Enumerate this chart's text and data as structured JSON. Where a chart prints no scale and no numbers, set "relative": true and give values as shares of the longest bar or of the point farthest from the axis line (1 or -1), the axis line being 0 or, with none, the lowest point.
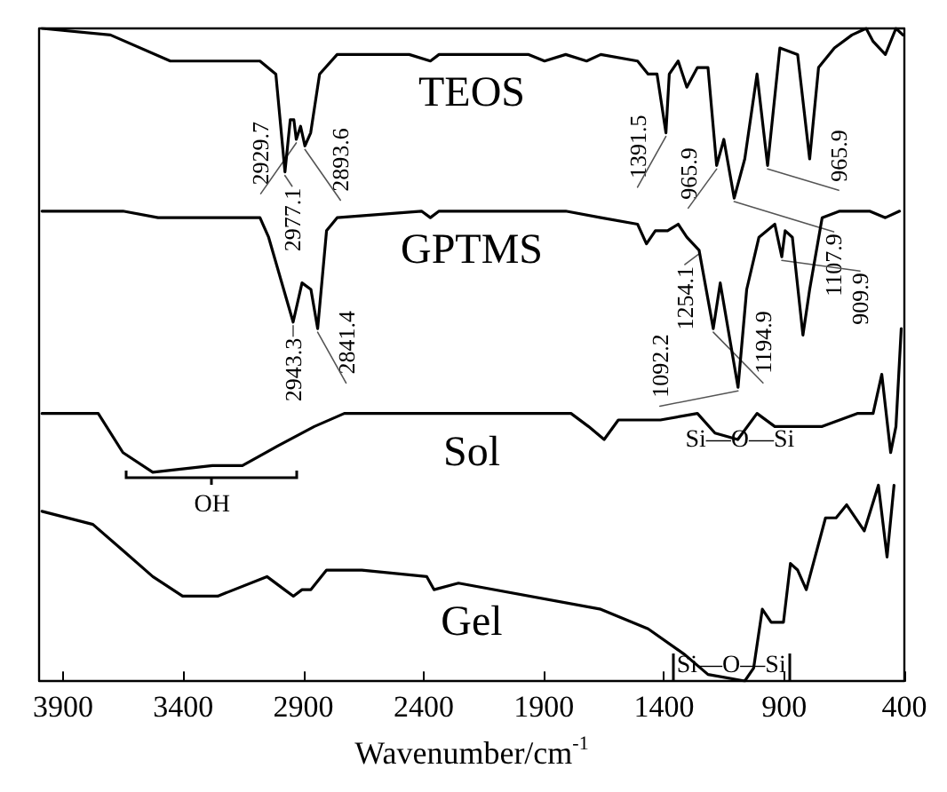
{
  "chart_data": {
    "type": "line",
    "xlabel": "Wavenumber/cm$^{-1}$",
    "relative": true,
    "xlim": [
      4000,
      400
    ],
    "xticks": [
      3900,
      3400,
      2900,
      2400,
      1900,
      1400,
      900,
      400
    ],
    "grid": false,
    "legend": false,
    "marker": "none",
    "line_style": "solid",
    "series": [
      {
        "name": "TEOS",
        "color": "#000000",
        "x": [
          3988,
          3703,
          3454,
          3081,
          3015,
          2977,
          2955,
          2940,
          2930,
          2912,
          2894,
          2870,
          2833,
          2760,
          2460,
          2372,
          2336,
          1963,
          1897,
          1809,
          1722,
          1663,
          1510,
          1466,
          1429,
          1392,
          1378,
          1341,
          1305,
          1261,
          1217,
          1181,
          1151,
          1108,
          1064,
          1013,
          969,
          918,
          844,
          794,
          757,
          691,
          618,
          559,
          530,
          479,
          435,
          406
        ],
        "values": [
          1.0,
          0.99,
          0.95,
          0.95,
          0.93,
          0.78,
          0.86,
          0.86,
          0.83,
          0.85,
          0.82,
          0.84,
          0.93,
          0.96,
          0.96,
          0.95,
          0.96,
          0.96,
          0.95,
          0.96,
          0.95,
          0.96,
          0.95,
          0.93,
          0.93,
          0.84,
          0.93,
          0.95,
          0.91,
          0.94,
          0.94,
          0.79,
          0.83,
          0.74,
          0.8,
          0.93,
          0.79,
          0.97,
          0.96,
          0.8,
          0.94,
          0.97,
          0.99,
          1.0,
          0.98,
          0.96,
          1.0,
          0.99
        ]
      },
      {
        "name": "GPTMS",
        "color": "#000000",
        "x": [
          3988,
          3651,
          3505,
          3081,
          3045,
          2943,
          2906,
          2869,
          2841,
          2804,
          2760,
          2409,
          2372,
          2336,
          1809,
          1663,
          1510,
          1473,
          1436,
          1385,
          1341,
          1305,
          1254,
          1195,
          1166,
          1092,
          1056,
          1005,
          939,
          910,
          896,
          866,
          822,
          794,
          742,
          669,
          545,
          479,
          420
        ],
        "values": [
          0.72,
          0.72,
          0.71,
          0.71,
          0.68,
          0.55,
          0.61,
          0.6,
          0.54,
          0.69,
          0.71,
          0.72,
          0.71,
          0.72,
          0.72,
          0.71,
          0.7,
          0.67,
          0.69,
          0.69,
          0.7,
          0.68,
          0.66,
          0.54,
          0.61,
          0.45,
          0.6,
          0.68,
          0.7,
          0.65,
          0.69,
          0.68,
          0.53,
          0.6,
          0.71,
          0.72,
          0.72,
          0.71,
          0.72
        ]
      },
      {
        "name": "Sol",
        "color": "#000000",
        "x": [
          3988,
          3754,
          3651,
          3527,
          3279,
          3154,
          3008,
          2855,
          2730,
          1787,
          1714,
          1649,
          1590,
          1415,
          1261,
          1188,
          1093,
          1013,
          939,
          844,
          742,
          596,
          530,
          494,
          457,
          435,
          413
        ],
        "values": [
          0.41,
          0.41,
          0.35,
          0.32,
          0.33,
          0.33,
          0.36,
          0.39,
          0.41,
          0.41,
          0.39,
          0.37,
          0.4,
          0.4,
          0.41,
          0.38,
          0.37,
          0.41,
          0.39,
          0.39,
          0.39,
          0.41,
          0.41,
          0.47,
          0.35,
          0.39,
          0.54
        ]
      },
      {
        "name": "Gel",
        "color": "#000000",
        "x": [
          3988,
          3776,
          3651,
          3527,
          3403,
          3257,
          3052,
          2979,
          2942,
          2906,
          2869,
          2804,
          2657,
          2387,
          2357,
          2255,
          1663,
          1466,
          1312,
          1217,
          1064,
          1027,
          991,
          954,
          903,
          874,
          844,
          808,
          728,
          684,
          640,
          567,
          508,
          472,
          443
        ],
        "values": [
          0.26,
          0.24,
          0.2,
          0.16,
          0.13,
          0.13,
          0.16,
          0.14,
          0.13,
          0.14,
          0.14,
          0.17,
          0.17,
          0.16,
          0.14,
          0.15,
          0.11,
          0.08,
          0.04,
          0.01,
          0.0,
          0.02,
          0.11,
          0.09,
          0.09,
          0.18,
          0.17,
          0.14,
          0.25,
          0.25,
          0.27,
          0.23,
          0.3,
          0.19,
          0.3
        ]
      }
    ],
    "annotations": [
      {
        "text": "2977.1",
        "x": 2977,
        "y": 0.78
      },
      {
        "text": "2929.7",
        "x": 2930,
        "y": 0.83
      },
      {
        "text": "2893.6",
        "x": 2894,
        "y": 0.82
      },
      {
        "text": "1391.5",
        "x": 1392,
        "y": 0.84
      },
      {
        "text": "965.9",
        "x": 1181,
        "y": 0.79
      },
      {
        "text": "1107.9",
        "x": 1108,
        "y": 0.74
      },
      {
        "text": "965.9",
        "x": 969,
        "y": 0.79
      },
      {
        "text": "2943.3",
        "x": 2943,
        "y": 0.55
      },
      {
        "text": "2841.4",
        "x": 2841,
        "y": 0.54
      },
      {
        "text": "1254.1",
        "x": 1254,
        "y": 0.66
      },
      {
        "text": "1194.9",
        "x": 1195,
        "y": 0.54
      },
      {
        "text": "1092.2",
        "x": 1092,
        "y": 0.45
      },
      {
        "text": "909.9",
        "x": 910,
        "y": 0.65
      },
      "OH",
      "Si—O—Si",
      "Si—O—Si"
    ]
  }
}
